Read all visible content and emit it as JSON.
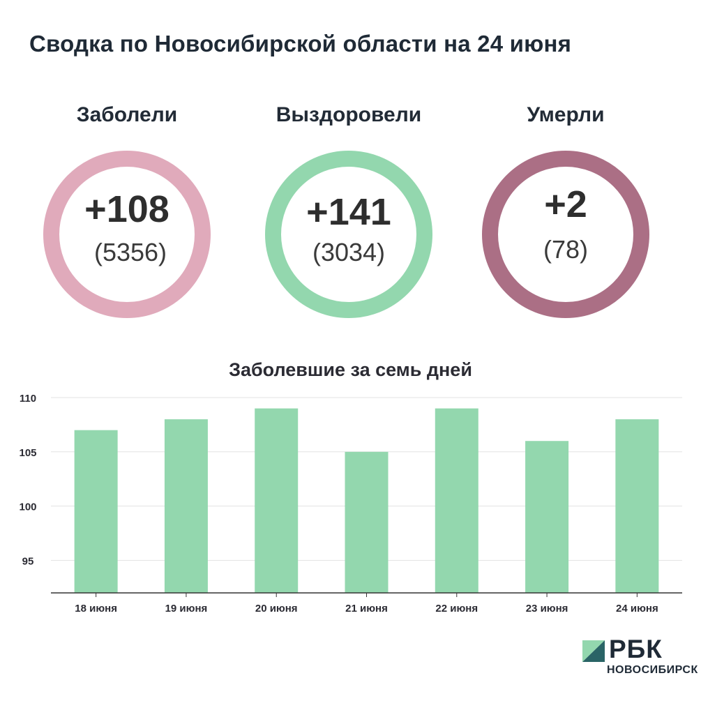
{
  "header": {
    "title": "Сводка по Новосибирской области на 24 июня"
  },
  "stats": [
    {
      "label": "Заболели",
      "delta": "+108",
      "total": "(5356)",
      "color": "#e0aabb"
    },
    {
      "label": "Выздоровели",
      "delta": "+141",
      "total": "(3034)",
      "color": "#93d7ae"
    },
    {
      "label": "Умерли",
      "delta": "+2",
      "total": "(78)",
      "color": "#ab6f85"
    }
  ],
  "chart_data": {
    "type": "bar",
    "title": "Заболевшие за семь дней",
    "categories": [
      "18 июня",
      "19 июня",
      "20 июня",
      "21 июня",
      "22 июня",
      "23 июня",
      "24 июня"
    ],
    "values": [
      107,
      108,
      109,
      105,
      109,
      106,
      108
    ],
    "ylim": [
      92,
      110
    ],
    "yticks": [
      95,
      100,
      105,
      110
    ],
    "xlabel": "",
    "ylabel": "",
    "grid": true,
    "bar_color": "#93d7ae"
  },
  "logo": {
    "name": "РБК",
    "sub": "НОВОСИБИРСК",
    "colors": [
      "#2a6466",
      "#93d7ae"
    ]
  }
}
